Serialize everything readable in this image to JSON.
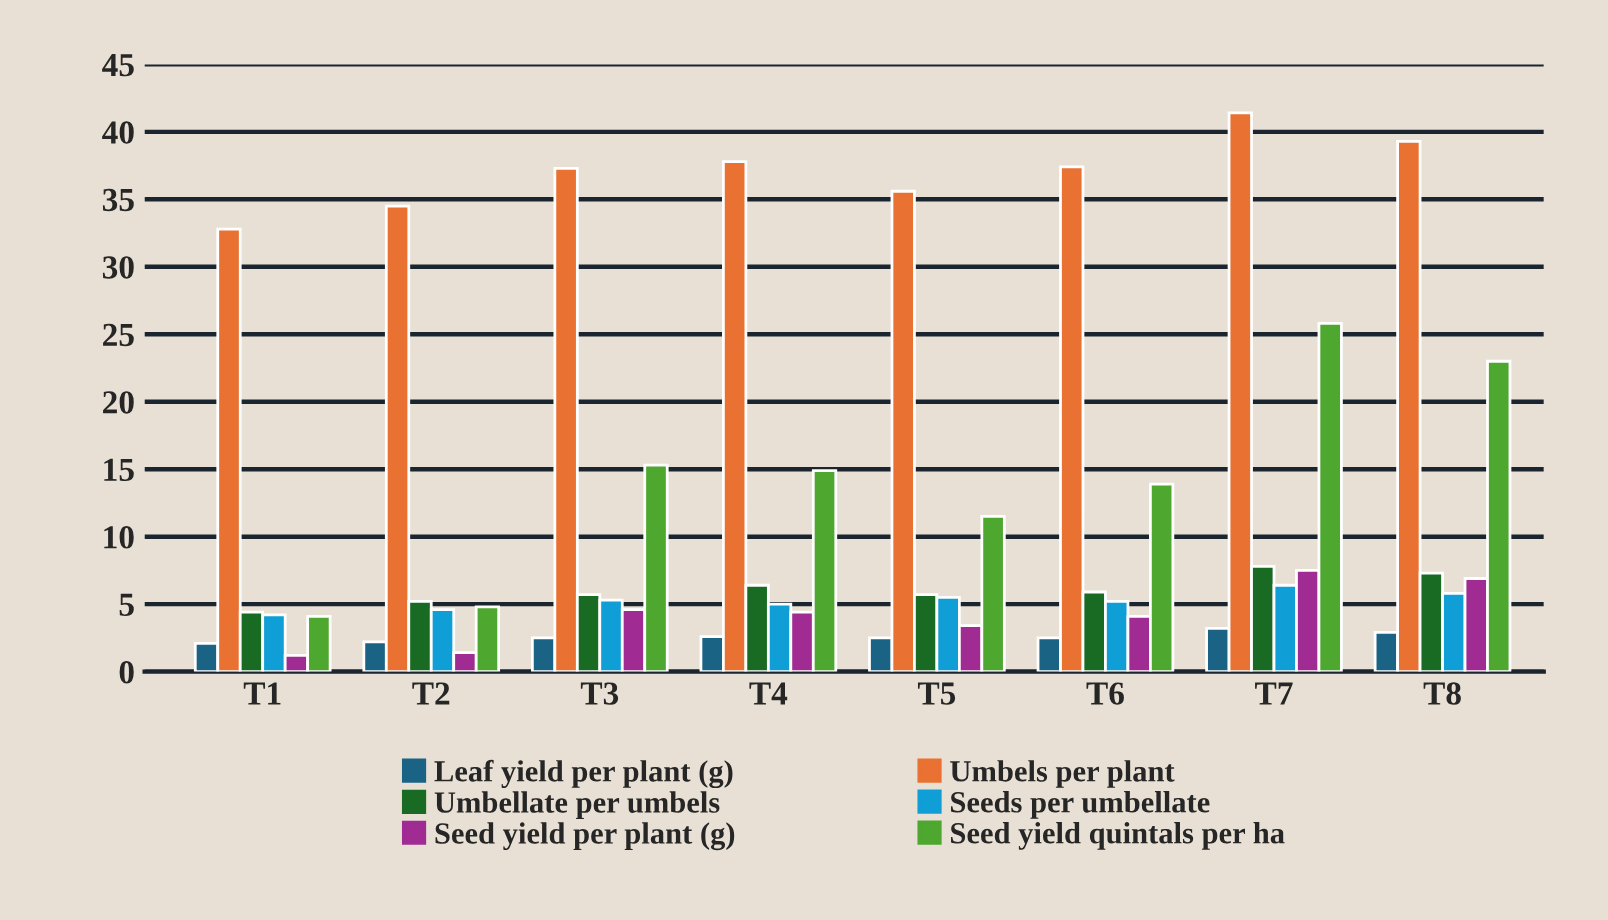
{
  "chart_data": {
    "type": "bar",
    "categories": [
      "T1",
      "T2",
      "T3",
      "T4",
      "T5",
      "T6",
      "T7",
      "T8"
    ],
    "series": [
      {
        "name": "Leaf yield per plant (g)",
        "color": "#1a6384",
        "values": [
          2.1,
          2.2,
          2.5,
          2.6,
          2.5,
          2.5,
          3.2,
          2.9
        ]
      },
      {
        "name": "Umbels per plant",
        "color": "#e97131",
        "values": [
          32.8,
          34.5,
          37.3,
          37.8,
          35.6,
          37.4,
          41.4,
          39.3
        ]
      },
      {
        "name": "Umbellate per umbels",
        "color": "#196b24",
        "values": [
          4.4,
          5.2,
          5.7,
          6.4,
          5.7,
          5.9,
          7.8,
          7.3
        ]
      },
      {
        "name": "Seeds per umbellate",
        "color": "#0f9ed5",
        "values": [
          4.2,
          4.6,
          5.3,
          5.0,
          5.5,
          5.2,
          6.4,
          5.8
        ]
      },
      {
        "name": "Seed yield per plant (g)",
        "color": "#a02b93",
        "values": [
          1.2,
          1.4,
          4.6,
          4.4,
          3.4,
          4.1,
          7.5,
          6.9
        ]
      },
      {
        "name": "Seed yield quintals per ha",
        "color": "#4ea72e",
        "values": [
          4.1,
          4.8,
          15.3,
          14.9,
          11.5,
          13.9,
          25.8,
          23.0
        ]
      }
    ],
    "ylim": [
      0,
      45
    ],
    "yticks": [
      0,
      5,
      10,
      15,
      20,
      25,
      30,
      35,
      40,
      45
    ],
    "grid": "y",
    "legend": "bottom"
  }
}
